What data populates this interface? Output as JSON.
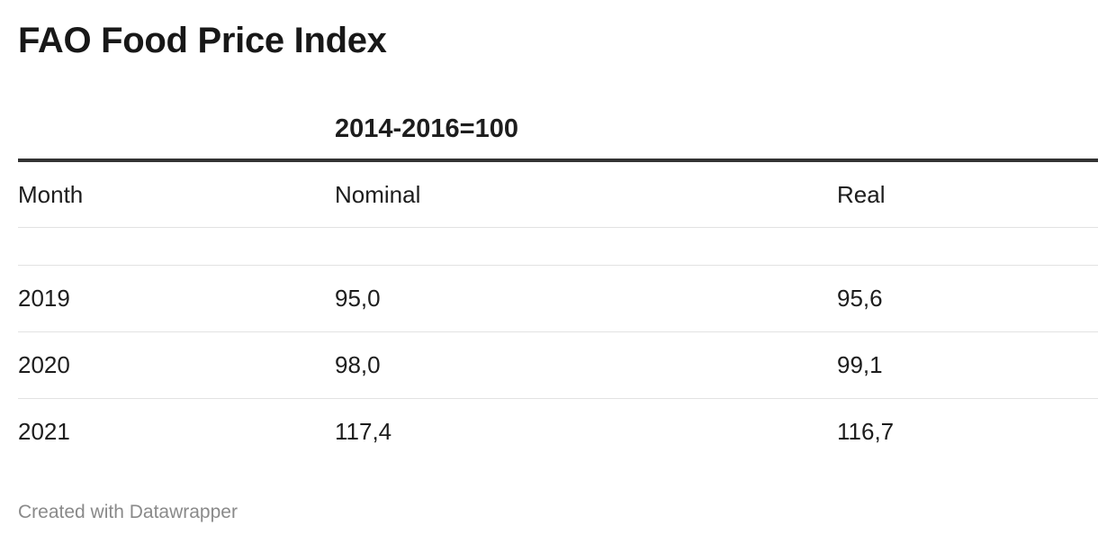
{
  "chart_data": {
    "type": "table",
    "title": "FAO Food Price Index",
    "column_group": "2014-2016=100",
    "columns": [
      "Month",
      "Nominal",
      "Real"
    ],
    "rows": [
      {
        "month": "2019",
        "nominal": "95,0",
        "real": "95,6"
      },
      {
        "month": "2020",
        "nominal": "98,0",
        "real": "99,1"
      },
      {
        "month": "2021",
        "nominal": "117,4",
        "real": "116,7"
      }
    ]
  },
  "footer": {
    "credit": "Created with Datawrapper"
  }
}
